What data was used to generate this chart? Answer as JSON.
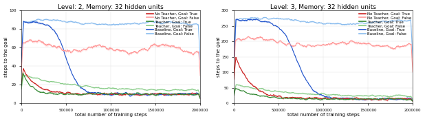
{
  "left_title": "Level: 2, Memory: 32 hidden units",
  "right_title": "Level: 3, Memory: 32 hidden units",
  "xlabel": "total number of training steps",
  "ylabel": "steps to the goal",
  "left_ylim": [
    0,
    100
  ],
  "right_ylim": [
    0,
    300
  ],
  "left_yticks": [
    0,
    20,
    40,
    60,
    80,
    100
  ],
  "right_yticks": [
    0,
    50,
    100,
    150,
    200,
    250,
    300
  ],
  "xtick_labels": [
    "0",
    "500000",
    "1000000",
    "1500000",
    "2000000"
  ],
  "legend_entries": [
    "No Teacher, Goal: True",
    "No Teacher, Goal: False",
    "Teacher, Goal: True",
    "Teacher, Goal: False",
    "Baseline, Goal: True",
    "Baseline, Goal: False"
  ],
  "colors": {
    "no_teacher_true": "#cc2222",
    "no_teacher_false": "#ff9999",
    "teacher_true": "#338833",
    "teacher_false": "#88cc88",
    "baseline_true": "#2255cc",
    "baseline_false": "#88bbee"
  },
  "seed": 42,
  "N": 800
}
